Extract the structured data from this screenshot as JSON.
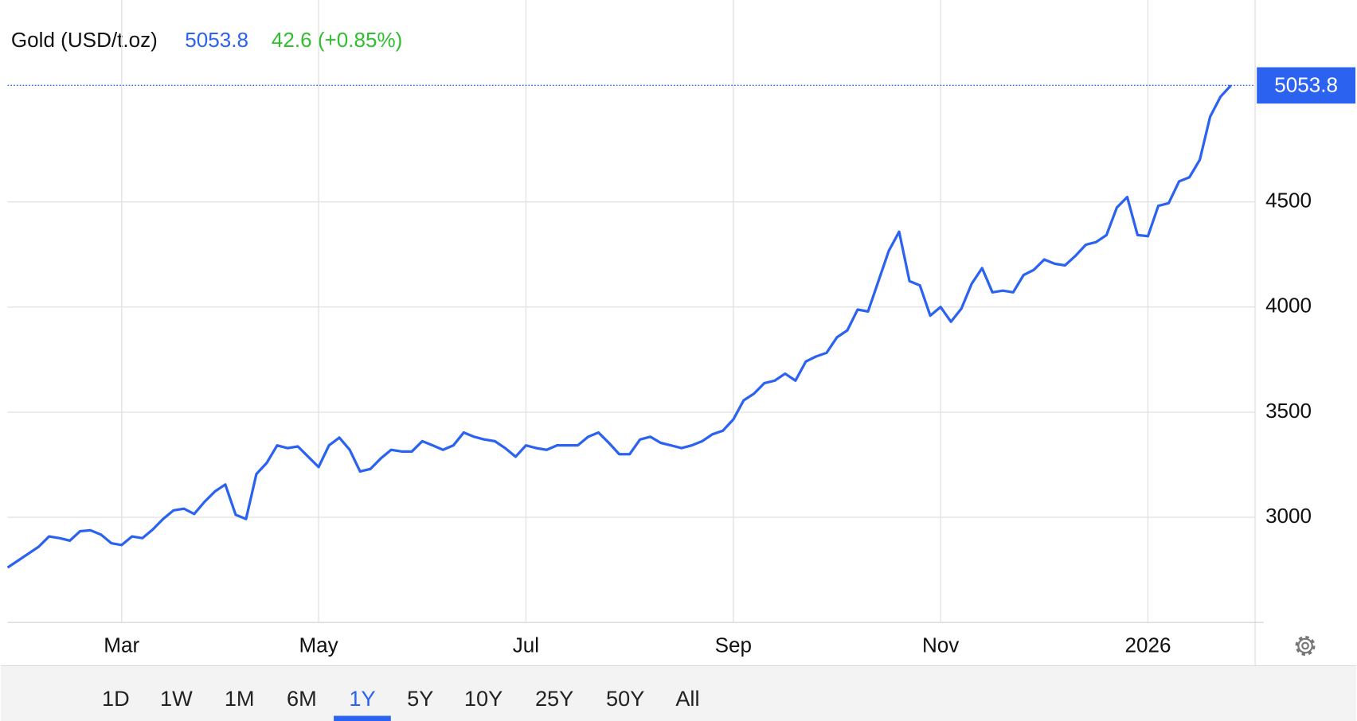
{
  "chart_data": {
    "type": "line",
    "change_label": "42.6 (+0.85%)",
    "change_color": "#2fbf2f",
    "categories": [
      null,
      null,
      null,
      null,
      null,
      null,
      null,
      null,
      null,
      null,
      null,
      "Mar",
      null,
      null,
      null,
      null,
      null,
      null,
      null,
      null,
      null,
      null,
      null,
      null,
      null,
      null,
      null,
      null,
      null,
      null,
      "May",
      null,
      null,
      null,
      null,
      null,
      null,
      null,
      null,
      null,
      null,
      null,
      null,
      null,
      null,
      null,
      null,
      null,
      null,
      null,
      "Jul",
      null,
      null,
      null,
      null,
      null,
      null,
      null,
      null,
      null,
      null,
      null,
      null,
      null,
      null,
      null,
      null,
      null,
      null,
      null,
      "Sep",
      null,
      null,
      null,
      null,
      null,
      null,
      null,
      null,
      null,
      null,
      null,
      null,
      null,
      null,
      null,
      null,
      null,
      null,
      null,
      "Nov",
      null,
      null,
      null,
      null,
      null,
      null,
      null,
      null,
      null,
      null,
      null,
      null,
      null,
      null,
      null,
      null,
      null,
      null,
      null,
      "2026",
      null,
      null,
      null,
      null,
      null,
      null,
      null,
      null
    ],
    "series": [
      {
        "name": "Gold (USD/t.oz)",
        "color": "#2b63f0",
        "values": [
          2761,
          2794,
          2827,
          2860,
          2909,
          2901,
          2889,
          2934,
          2938,
          2918,
          2877,
          2868,
          2909,
          2901,
          2942,
          2992,
          3033,
          3041,
          3016,
          3074,
          3123,
          3156,
          3012,
          2992,
          3206,
          3259,
          3342,
          3329,
          3337,
          3288,
          3239,
          3342,
          3379,
          3321,
          3218,
          3230,
          3280,
          3321,
          3313,
          3313,
          3362,
          3342,
          3321,
          3342,
          3403,
          3383,
          3370,
          3362,
          3329,
          3288,
          3342,
          3329,
          3321,
          3342,
          3342,
          3342,
          3383,
          3403,
          3354,
          3300,
          3300,
          3370,
          3383,
          3354,
          3342,
          3329,
          3342,
          3362,
          3395,
          3412,
          3465,
          3556,
          3588,
          3638,
          3650,
          3683,
          3650,
          3741,
          3765,
          3782,
          3856,
          3889,
          3988,
          3979,
          4123,
          4267,
          4358,
          4123,
          4103,
          3959,
          4000,
          3930,
          3992,
          4111,
          4185,
          4070,
          4078,
          4070,
          4152,
          4177,
          4226,
          4206,
          4198,
          4243,
          4296,
          4309,
          4342,
          4473,
          4523,
          4342,
          4337,
          4481,
          4494,
          4597,
          4617,
          4700,
          4905,
          5000,
          5053.8
        ]
      }
    ],
    "ylim": [
      2500,
      5460
    ],
    "yticks": [
      3000,
      3500,
      4000,
      4500
    ],
    "grid": true
  },
  "range_buttons": [
    "1D",
    "1W",
    "1M",
    "6M",
    "1Y",
    "5Y",
    "10Y",
    "25Y",
    "50Y",
    "All"
  ],
  "selected_range": 4
}
